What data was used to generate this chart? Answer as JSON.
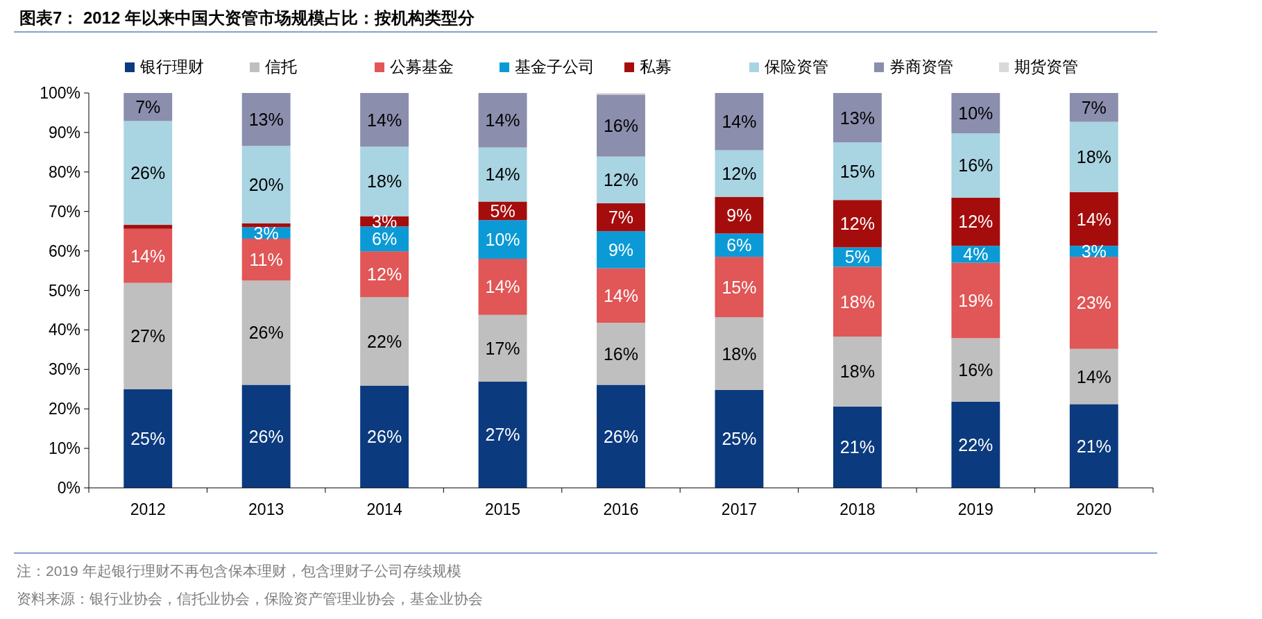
{
  "chart_data": {
    "type": "bar",
    "title": "图表7：  2012 年以来中国大资管市场规模占比：按机构类型分",
    "categories": [
      "2012",
      "2013",
      "2014",
      "2015",
      "2016",
      "2017",
      "2018",
      "2019",
      "2020"
    ],
    "stacked": true,
    "ylim": [
      0,
      100
    ],
    "yticks": [
      {
        "value": 0,
        "label": "0%"
      },
      {
        "value": 10,
        "label": "10%"
      },
      {
        "value": 20,
        "label": "20%"
      },
      {
        "value": 30,
        "label": "30%"
      },
      {
        "value": 40,
        "label": "40%"
      },
      {
        "value": 50,
        "label": "50%"
      },
      {
        "value": 60,
        "label": "60%"
      },
      {
        "value": 70,
        "label": "70%"
      },
      {
        "value": 80,
        "label": "80%"
      },
      {
        "value": 90,
        "label": "90%"
      },
      {
        "value": 100,
        "label": "100%"
      }
    ],
    "grid": false,
    "legend": "top",
    "series": [
      {
        "name": "银行理财",
        "color": "#0b3a7e",
        "values": [
          25,
          26.1,
          25.9,
          26.9,
          26.1,
          24.8,
          20.6,
          21.8,
          21.2
        ],
        "value_labels": [
          "25%",
          "26%",
          "26%",
          "27%",
          "26%",
          "25%",
          "21%",
          "22%",
          "21%"
        ]
      },
      {
        "name": "信托",
        "color": "#bfbfbf",
        "values": [
          26.9,
          26.4,
          22.4,
          16.9,
          15.7,
          18.4,
          17.7,
          16.1,
          14.0
        ],
        "value_labels": [
          "27%",
          "26%",
          "22%",
          "17%",
          "16%",
          "18%",
          "18%",
          "16%",
          "14%"
        ]
      },
      {
        "name": "公募基金",
        "color": "#e15656",
        "values": [
          13.7,
          10.6,
          11.6,
          14.2,
          13.8,
          15.3,
          17.7,
          19.1,
          23.3
        ],
        "value_labels": [
          "14%",
          "11%",
          "12%",
          "14%",
          "14%",
          "15%",
          "18%",
          "19%",
          "23%"
        ]
      },
      {
        "name": "基金子公司",
        "color": "#0b9ad6",
        "values": [
          0,
          2.9,
          6.3,
          9.8,
          9.4,
          5.9,
          4.9,
          4.3,
          2.8
        ],
        "value_labels": [
          null,
          "3%",
          "6%",
          "10%",
          "9%",
          "6%",
          "5%",
          "4%",
          "3%"
        ]
      },
      {
        "name": "私募",
        "color": "#a50d0d",
        "values": [
          1.0,
          1.0,
          2.6,
          4.7,
          7.1,
          9.3,
          12.0,
          12.2,
          13.6
        ],
        "value_labels": [
          null,
          null,
          "3%",
          "5%",
          "7%",
          "9%",
          "12%",
          "12%",
          "14%"
        ]
      },
      {
        "name": "保险资管",
        "color": "#a9d4e2",
        "values": [
          26.3,
          19.6,
          17.6,
          13.7,
          11.8,
          11.8,
          14.6,
          16.3,
          17.8
        ],
        "value_labels": [
          "26%",
          "20%",
          "18%",
          "14%",
          "12%",
          "12%",
          "15%",
          "16%",
          "18%"
        ]
      },
      {
        "name": "券商资管",
        "color": "#8b8ead",
        "values": [
          7.1,
          13.4,
          13.6,
          13.8,
          15.7,
          14.5,
          12.5,
          10.2,
          7.3
        ],
        "value_labels": [
          "7%",
          "13%",
          "14%",
          "14%",
          "16%",
          "14%",
          "13%",
          "10%",
          "7%"
        ]
      },
      {
        "name": "期货资管",
        "color": "#d9d9d9",
        "values": [
          0,
          0,
          0,
          0,
          0.4,
          0,
          0,
          0,
          0
        ]
      }
    ],
    "annotations": [
      "注：2019 年起银行理财不再包含保本理财，包含理财子公司存续规模",
      "资料来源：银行业协会，信托业协会，保险资产管理业协会，基金业协会"
    ]
  }
}
